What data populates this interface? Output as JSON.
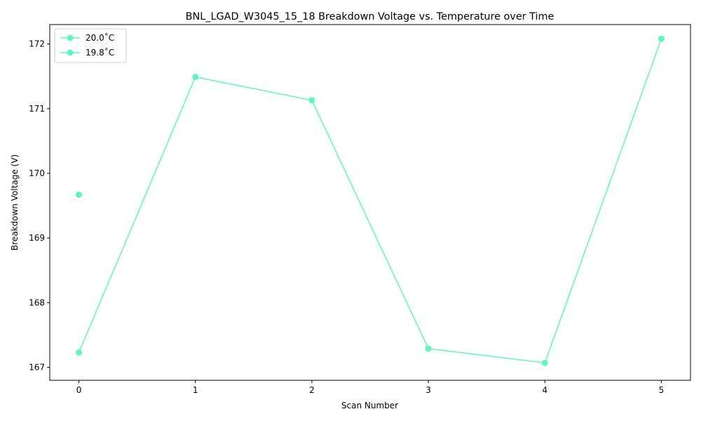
{
  "chart_data": {
    "type": "line",
    "title": "BNL_LGAD_W3045_15_18 Breakdown Voltage vs. Temperature over Time",
    "xlabel": "Scan Number",
    "ylabel": "Breakdown Voltage (V)",
    "xlim": [
      -0.25,
      5.25
    ],
    "ylim": [
      166.8,
      172.3
    ],
    "xticks": [
      0,
      1,
      2,
      3,
      4,
      5
    ],
    "yticks": [
      167,
      168,
      169,
      170,
      171,
      172
    ],
    "legend_position": "upper-left",
    "series": [
      {
        "name": "20.0$^\\circ$C",
        "legend_label": "20.0˚C",
        "color": "#5ef5c0",
        "x": [
          0
        ],
        "y": [
          169.67
        ]
      },
      {
        "name": "19.8$^\\circ$C",
        "legend_label": "19.8˚C",
        "color": "#5ef5c0",
        "x": [
          0,
          1,
          2,
          3,
          4,
          5
        ],
        "y": [
          167.23,
          171.49,
          171.13,
          167.29,
          167.07,
          172.08
        ]
      }
    ]
  }
}
